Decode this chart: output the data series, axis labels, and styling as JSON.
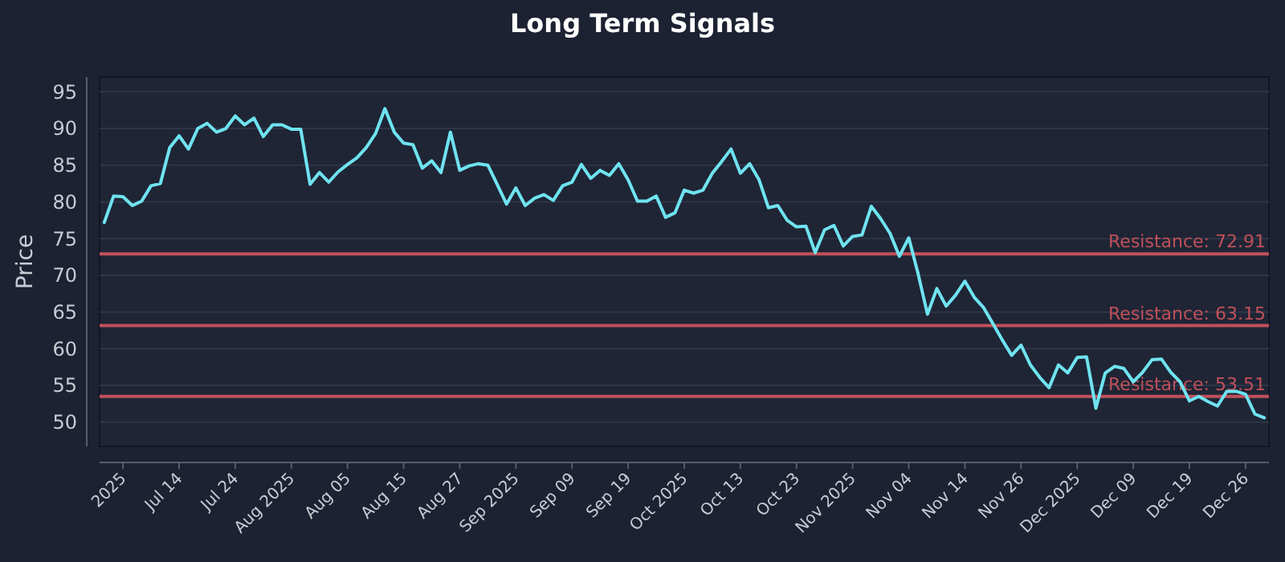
{
  "chart_data": {
    "type": "line",
    "title": "Long Term Signals",
    "ylabel": "Price",
    "categories": [
      null,
      null,
      "2025",
      null,
      null,
      null,
      null,
      null,
      "Jul 14",
      null,
      null,
      null,
      null,
      null,
      "Jul 24",
      null,
      null,
      null,
      null,
      null,
      "Aug 2025",
      null,
      null,
      null,
      null,
      null,
      "Aug 05",
      null,
      null,
      null,
      null,
      null,
      "Aug 15",
      null,
      null,
      null,
      null,
      null,
      "Aug 27",
      null,
      null,
      null,
      null,
      null,
      "Sep 2025",
      null,
      null,
      null,
      null,
      null,
      "Sep 09",
      null,
      null,
      null,
      null,
      null,
      "Sep 19",
      null,
      null,
      null,
      null,
      null,
      "Oct 2025",
      null,
      null,
      null,
      null,
      null,
      "Oct 13",
      null,
      null,
      null,
      null,
      null,
      "Oct 23",
      null,
      null,
      null,
      null,
      null,
      "Nov 2025",
      null,
      null,
      null,
      null,
      null,
      "Nov 04",
      null,
      null,
      null,
      null,
      null,
      "Nov 14",
      null,
      null,
      null,
      null,
      null,
      "Nov 26",
      null,
      null,
      null,
      null,
      null,
      "Dec 2025",
      null,
      null,
      null,
      null,
      null,
      "Dec 09",
      null,
      null,
      null,
      null,
      null,
      "Dec 19",
      null,
      null,
      null,
      null,
      null,
      "Dec 26",
      null,
      null
    ],
    "series": [
      {
        "color": "#6fe3f0",
        "values": [
          77.2,
          80.8,
          80.7,
          79.5,
          80.1,
          82.2,
          82.5,
          87.4,
          89,
          87.2,
          90,
          90.7,
          89.5,
          90,
          91.7,
          90.5,
          91.4,
          88.9,
          90.5,
          90.5,
          89.9,
          89.9,
          82.4,
          84,
          82.7,
          84.1,
          85.1,
          86,
          87.4,
          89.3,
          92.7,
          89.5,
          88,
          87.8,
          84.6,
          85.6,
          84,
          89.5,
          84.3,
          84.9,
          85.2,
          85,
          82.4,
          79.7,
          81.9,
          79.5,
          80.5,
          81,
          80.2,
          82.2,
          82.7,
          85.1,
          83.2,
          84.3,
          83.6,
          85.2,
          83,
          80.1,
          80.1,
          80.8,
          77.9,
          78.5,
          81.6,
          81.2,
          81.6,
          83.9,
          85.5,
          87.2,
          83.9,
          85.2,
          83,
          79.2,
          79.5,
          77.5,
          76.6,
          76.7,
          73.1,
          76.2,
          76.8,
          74,
          75.3,
          75.5,
          79.4,
          77.7,
          75.7,
          72.6,
          75.1,
          70.2,
          64.7,
          68.2,
          65.8,
          67.3,
          69.2,
          67,
          65.6,
          63.4,
          61.2,
          59.1,
          60.5,
          57.8,
          56.1,
          54.7,
          57.8,
          56.7,
          58.8,
          58.9,
          51.9,
          56.7,
          57.6,
          57.3,
          55.5,
          56.8,
          58.5,
          58.6,
          56.8,
          55.5,
          52.9,
          53.5,
          52.8,
          52.2,
          54.2,
          54.2,
          53.8,
          51.1,
          50.6
        ]
      }
    ],
    "ylim": [
      46.7,
      97
    ],
    "yticks": [
      50,
      55,
      60,
      65,
      70,
      75,
      80,
      85,
      90,
      95
    ],
    "grid": "y",
    "marker": "none",
    "line_style": "solid",
    "ref_lines": [
      {
        "axis": "y",
        "value": 72.91,
        "label": "Resistance: 72.91",
        "color": "#c0505a"
      },
      {
        "axis": "y",
        "value": 63.15,
        "label": "Resistance: 63.15",
        "color": "#c0505a"
      },
      {
        "axis": "y",
        "value": 53.51,
        "label": "Resistance: 53.51",
        "color": "#c0505a"
      }
    ]
  }
}
